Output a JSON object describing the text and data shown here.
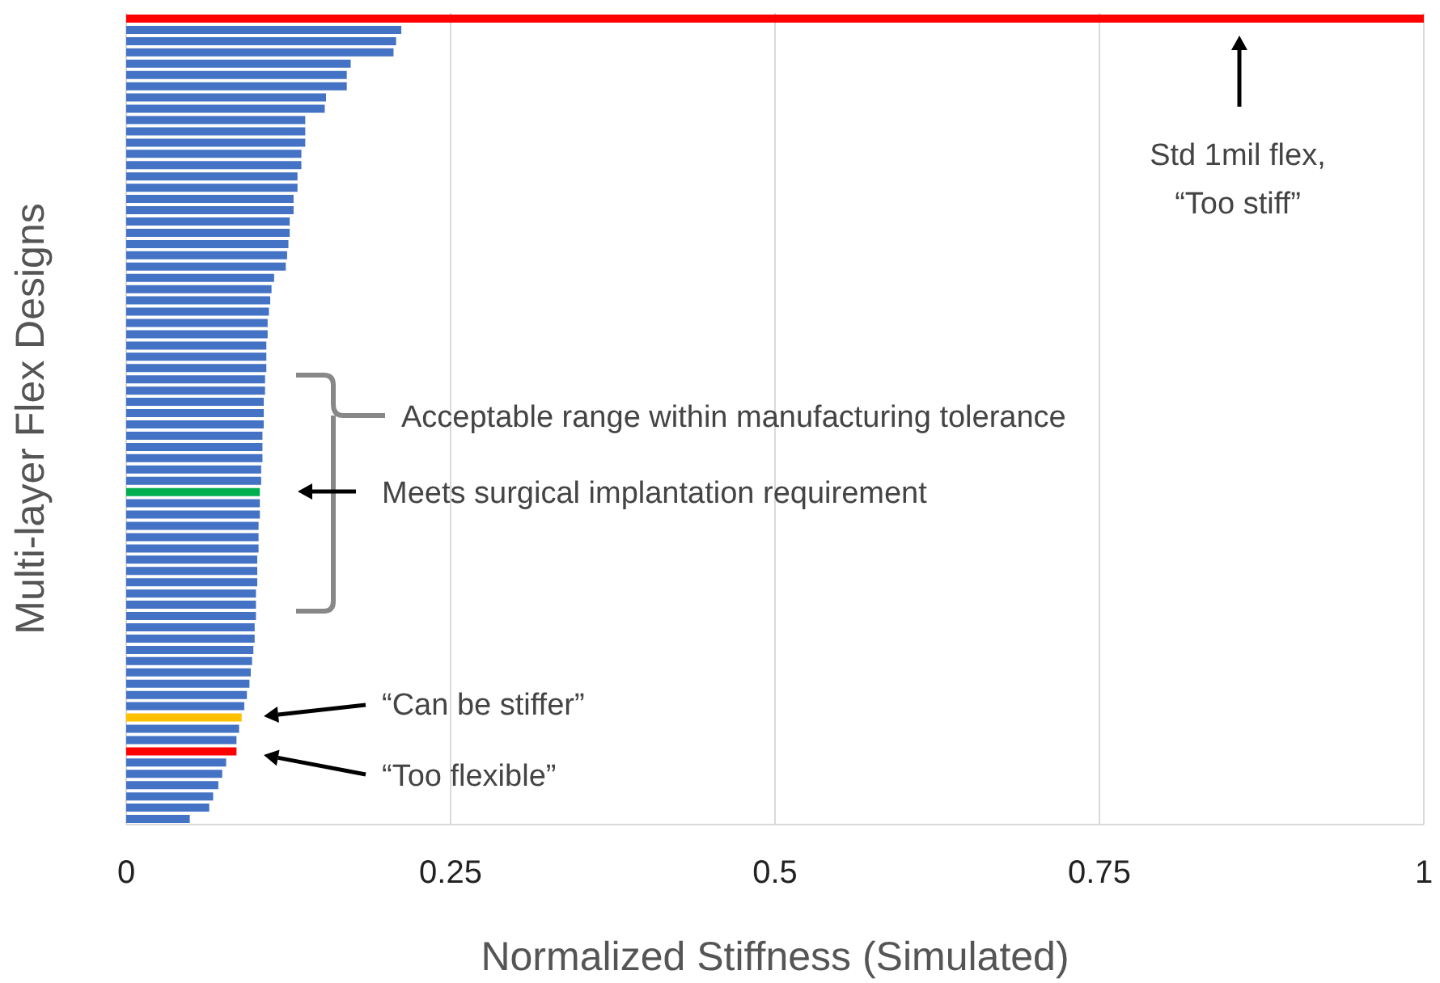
{
  "chart_data": {
    "type": "bar",
    "orientation": "horizontal",
    "xlabel": "Normalized Stiffness (Simulated)",
    "ylabel": "Multi-layer Flex Designs",
    "categories": [
      null,
      null,
      null,
      null,
      null,
      null,
      null,
      null,
      null,
      null,
      null,
      null,
      null,
      null,
      null,
      null,
      null,
      null,
      null,
      null,
      null,
      null,
      null,
      null,
      null,
      null,
      null,
      null,
      null,
      null,
      null,
      null,
      null,
      null,
      null,
      null,
      null,
      null,
      null,
      null,
      null,
      null,
      null,
      null,
      null,
      null,
      null,
      null,
      null,
      null,
      null,
      null,
      null,
      null,
      null,
      null,
      null,
      null,
      null,
      null,
      null,
      null,
      null,
      null,
      null,
      null,
      null,
      null,
      null,
      null,
      null,
      null
    ],
    "values": [
      1.0,
      0.212,
      0.208,
      0.206,
      0.173,
      0.17,
      0.17,
      0.154,
      0.153,
      0.138,
      0.138,
      0.138,
      0.135,
      0.135,
      0.132,
      0.132,
      0.129,
      0.129,
      0.126,
      0.126,
      0.125,
      0.124,
      0.123,
      0.114,
      0.112,
      0.111,
      0.11,
      0.109,
      0.109,
      0.108,
      0.108,
      0.108,
      0.107,
      0.107,
      0.106,
      0.106,
      0.106,
      0.105,
      0.105,
      0.105,
      0.104,
      0.104,
      0.103,
      0.103,
      0.103,
      0.102,
      0.102,
      0.102,
      0.101,
      0.101,
      0.101,
      0.1,
      0.1,
      0.1,
      0.099,
      0.099,
      0.098,
      0.097,
      0.096,
      0.095,
      0.093,
      0.091,
      0.089,
      0.087,
      0.085,
      0.085,
      0.077,
      0.074,
      0.071,
      0.067,
      0.064,
      0.049
    ],
    "colors": [
      "#ff0000",
      "#4472c4",
      "#4472c4",
      "#4472c4",
      "#4472c4",
      "#4472c4",
      "#4472c4",
      "#4472c4",
      "#4472c4",
      "#4472c4",
      "#4472c4",
      "#4472c4",
      "#4472c4",
      "#4472c4",
      "#4472c4",
      "#4472c4",
      "#4472c4",
      "#4472c4",
      "#4472c4",
      "#4472c4",
      "#4472c4",
      "#4472c4",
      "#4472c4",
      "#4472c4",
      "#4472c4",
      "#4472c4",
      "#4472c4",
      "#4472c4",
      "#4472c4",
      "#4472c4",
      "#4472c4",
      "#4472c4",
      "#4472c4",
      "#4472c4",
      "#4472c4",
      "#4472c4",
      "#4472c4",
      "#4472c4",
      "#4472c4",
      "#4472c4",
      "#4472c4",
      "#4472c4",
      "#00b050",
      "#4472c4",
      "#4472c4",
      "#4472c4",
      "#4472c4",
      "#4472c4",
      "#4472c4",
      "#4472c4",
      "#4472c4",
      "#4472c4",
      "#4472c4",
      "#4472c4",
      "#4472c4",
      "#4472c4",
      "#4472c4",
      "#4472c4",
      "#4472c4",
      "#4472c4",
      "#4472c4",
      "#4472c4",
      "#ffc000",
      "#4472c4",
      "#4472c4",
      "#ff0000",
      "#4472c4",
      "#4472c4",
      "#4472c4",
      "#4472c4",
      "#4472c4",
      "#4472c4"
    ],
    "xlim": [
      0,
      1
    ],
    "xticks": [
      0,
      0.25,
      0.5,
      0.75,
      1
    ],
    "grid": "x",
    "tick_labels": "x",
    "annotations": [
      "Std 1mil flex, “Too stiff”",
      "Acceptable range within manufacturing tolerance",
      "Meets surgical implantation requirement",
      "“Can be stiffer”",
      "“Too flexible”"
    ]
  }
}
